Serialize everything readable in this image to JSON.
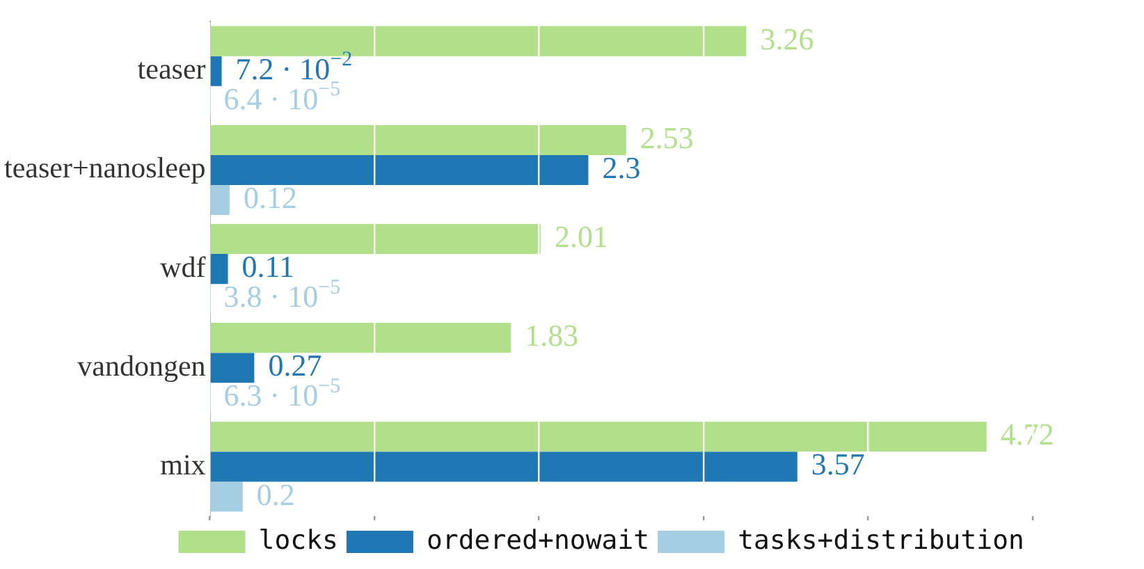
{
  "chart_data": {
    "type": "bar",
    "orientation": "horizontal",
    "categories": [
      "teaser",
      "teaser+nanosleep",
      "wdf",
      "vandongen",
      "mix"
    ],
    "series": [
      {
        "name": "locks",
        "color": "#b2df8a",
        "values": [
          3.26,
          2.53,
          2.01,
          1.83,
          4.72
        ],
        "value_labels": [
          "3.26",
          "2.53",
          "2.01",
          "1.83",
          "4.72"
        ]
      },
      {
        "name": "ordered+nowait",
        "color": "#1f78b4",
        "values": [
          0.072,
          2.3,
          0.11,
          0.27,
          3.57
        ],
        "value_labels": [
          "7.2 · 10$^{−2}$",
          "2.3",
          "0.11",
          "0.27",
          "3.57"
        ]
      },
      {
        "name": "tasks+distribution",
        "color": "#a6cee3",
        "values": [
          6.4e-05,
          0.12,
          3.8e-05,
          6.3e-05,
          0.2
        ],
        "value_labels": [
          "6.4 · 10$^{−5}$",
          "0.12",
          "3.8 · 10$^{−5}$",
          "6.3 · 10$^{−5}$",
          "0.2"
        ]
      }
    ],
    "tick_labels": "y",
    "grid": "x",
    "legend": "bottom"
  }
}
